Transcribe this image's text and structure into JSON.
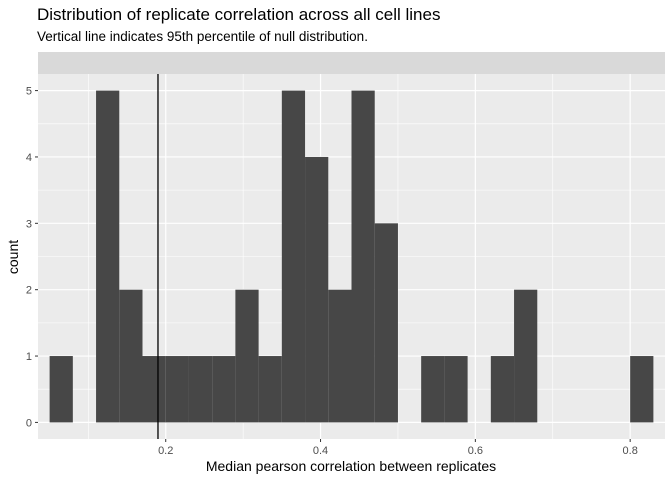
{
  "chart_data": {
    "type": "bar",
    "title": "Distribution of replicate correlation across all cell lines",
    "subtitle": "Vertical line indicates 95th percentile of null distribution.",
    "xlabel": "Median pearson correlation between replicates",
    "ylabel": "count",
    "xlim": [
      0.035,
      0.845
    ],
    "ylim": [
      -0.25,
      5.25
    ],
    "x_ticks": [
      0.2,
      0.4,
      0.6,
      0.8
    ],
    "y_ticks": [
      0,
      1,
      2,
      3,
      4,
      5
    ],
    "bin_width": 0.03,
    "bin_lefts": [
      0.05,
      0.08,
      0.11,
      0.14,
      0.17,
      0.2,
      0.23,
      0.26,
      0.29,
      0.32,
      0.35,
      0.38,
      0.41,
      0.44,
      0.47,
      0.5,
      0.53,
      0.56,
      0.59,
      0.62,
      0.65,
      0.68,
      0.71,
      0.74,
      0.77,
      0.8
    ],
    "counts": [
      1,
      0,
      5,
      2,
      1,
      1,
      1,
      1,
      2,
      1,
      5,
      4,
      2,
      5,
      3,
      0,
      1,
      1,
      0,
      1,
      2,
      0,
      0,
      0,
      0,
      1
    ],
    "vline_x": 0.19,
    "bar_color": "#474747",
    "panel_color": "#ebebeb",
    "strip_color": "#d9d9d9",
    "grid": true
  }
}
